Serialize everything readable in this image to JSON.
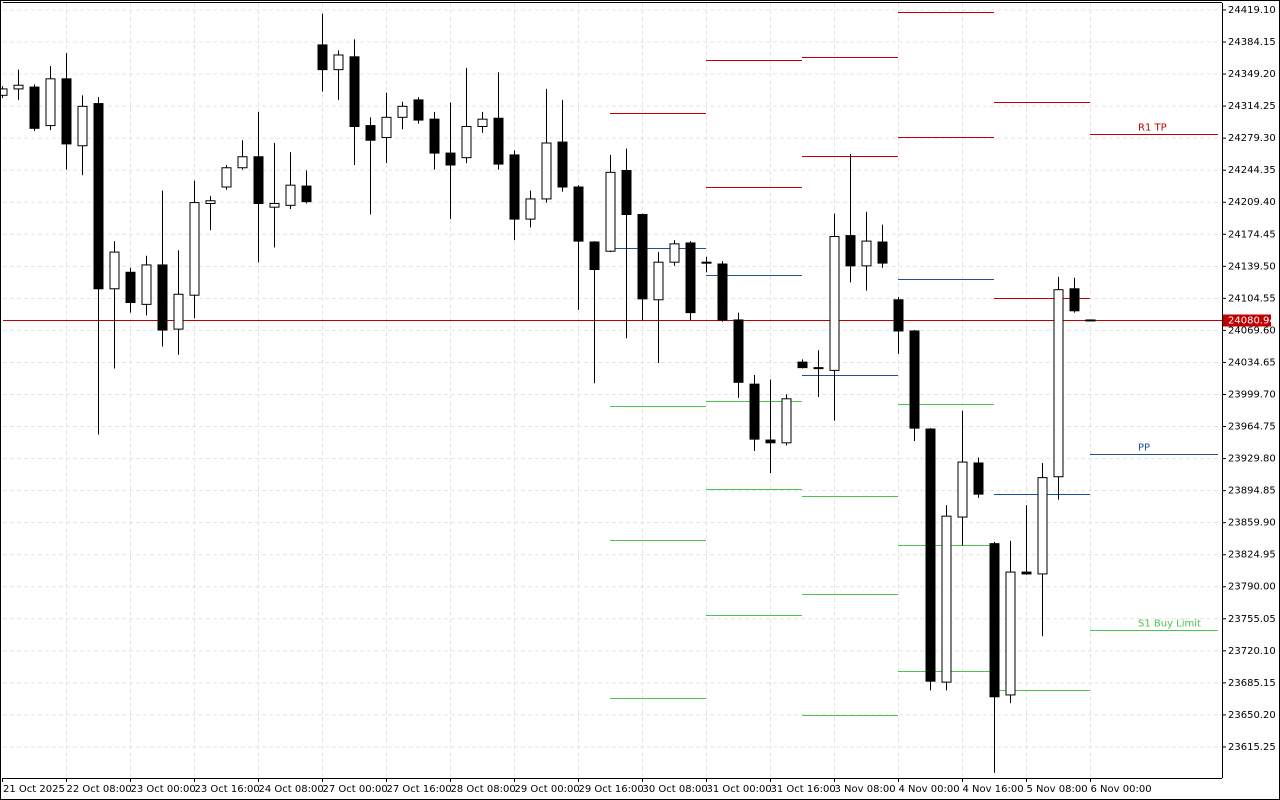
{
  "chart_data": {
    "type": "candlestick",
    "categories": [
      "21 Oct 2025",
      null,
      null,
      null,
      "22 Oct 08:00",
      null,
      null,
      null,
      "23 Oct 00:00",
      null,
      null,
      null,
      "23 Oct 16:00",
      null,
      null,
      null,
      "24 Oct 08:00",
      null,
      null,
      null,
      "27 Oct 00:00",
      null,
      null,
      null,
      "27 Oct 16:00",
      null,
      null,
      null,
      "28 Oct 08:00",
      null,
      null,
      null,
      "29 Oct 00:00",
      null,
      null,
      null,
      "29 Oct 16:00",
      null,
      null,
      null,
      "30 Oct 08:00",
      null,
      null,
      null,
      "31 Oct 00:00",
      null,
      null,
      null,
      "31 Oct 16:00",
      null,
      null,
      null,
      "3 Nov 08:00",
      null,
      null,
      null,
      "4 Nov 00:00",
      null,
      null,
      null,
      "4 Nov 16:00",
      null,
      null,
      null,
      "5 Nov 08:00",
      null,
      null,
      null,
      "6 Nov 00:00"
    ],
    "open": [
      24326,
      24333,
      24335,
      24293,
      24344,
      24271,
      24317,
      24115,
      24133,
      24098,
      24141,
      24071,
      24108,
      24208,
      24226,
      24247,
      24259,
      24204,
      24206,
      24227,
      24381,
      24354,
      24368,
      24293,
      24280,
      24302,
      24321,
      24300,
      24263,
      24258,
      24292,
      24301,
      24261,
      24191,
      24213,
      24275,
      24226,
      24166,
      24156,
      24244,
      24196,
      24103,
      24144,
      24165,
      24143,
      24142,
      24081,
      24011,
      23950,
      23947,
      24035,
      24028,
      24026,
      24173,
      24140,
      24166,
      24103,
      24069,
      23962,
      23686,
      23866,
      23925,
      23837,
      23672,
      23806,
      23804,
      23910,
      24115,
      24081
    ],
    "high": [
      24336,
      24354,
      24338,
      24358,
      24372,
      24326,
      24324,
      24167,
      24138,
      24151,
      24222,
      24157,
      24233,
      24216,
      24250,
      24277,
      24308,
      24274,
      24264,
      24244,
      24415,
      24375,
      24387,
      24302,
      24329,
      24319,
      24324,
      24308,
      24318,
      24356,
      24308,
      24351,
      24266,
      24222,
      24333,
      24321,
      24228,
      24167,
      24261,
      24268,
      24197,
      24155,
      24168,
      24167,
      24150,
      24145,
      24089,
      24021,
      24016,
      24000,
      24038,
      24048,
      24197,
      24262,
      24199,
      24185,
      24106,
      24070,
      23963,
      23879,
      23982,
      23931,
      23839,
      23840,
      23879,
      23925,
      24128,
      24127,
      24081
    ],
    "low": [
      24323,
      24321,
      24287,
      24288,
      24245,
      24239,
      23956,
      24028,
      24089,
      24086,
      24052,
      24043,
      24083,
      24179,
      24223,
      24245,
      24144,
      24160,
      24202,
      24208,
      24330,
      24321,
      24250,
      24196,
      24252,
      24289,
      24295,
      24245,
      24191,
      24252,
      24285,
      24245,
      24168,
      24182,
      24209,
      24221,
      24092,
      24012,
      24155,
      24061,
      24081,
      24034,
      24140,
      24081,
      24133,
      24079,
      23996,
      23938,
      23914,
      23944,
      24028,
      23997,
      23971,
      24122,
      24113,
      24138,
      24044,
      23949,
      23677,
      23677,
      23835,
      23887,
      23587,
      23663,
      23803,
      23736,
      23885,
      24089,
      24080
    ],
    "close": [
      24333,
      24337,
      24290,
      24344,
      24273,
      24314,
      24115,
      24155,
      24100,
      24141,
      24070,
      24109,
      24209,
      24211,
      24247,
      24259,
      24208,
      24208,
      24228,
      24210,
      24354,
      24370,
      24292,
      24277,
      24302,
      24314,
      24299,
      24263,
      24250,
      24292,
      24300,
      24251,
      24191,
      24213,
      24274,
      24226,
      24167,
      24136,
      24242,
      24196,
      24104,
      24144,
      24164,
      24089,
      24144,
      24081,
      24013,
      23951,
      23947,
      23995,
      24029,
      24029,
      24172,
      24140,
      24167,
      24143,
      24069,
      23963,
      23687,
      23867,
      23926,
      23891,
      23670,
      23806,
      23804,
      23909,
      24114,
      24091,
      24080
    ],
    "up_color": "#ffffff",
    "down_color": "#000000",
    "ylim": [
      23581.4,
      24426.7
    ],
    "yticks": [
      {
        "value": 24419.1,
        "label": "24419.10"
      },
      {
        "value": 24384.15,
        "label": "24384.15"
      },
      {
        "value": 24349.2,
        "label": "24349.20"
      },
      {
        "value": 24314.25,
        "label": "24314.25"
      },
      {
        "value": 24279.3,
        "label": "24279.30"
      },
      {
        "value": 24244.35,
        "label": "24244.35"
      },
      {
        "value": 24209.4,
        "label": "24209.40"
      },
      {
        "value": 24174.45,
        "label": "24174.45"
      },
      {
        "value": 24139.5,
        "label": "24139.50"
      },
      {
        "value": 24104.55,
        "label": "24104.55"
      },
      {
        "value": 24069.6,
        "label": "24069.60"
      },
      {
        "value": 24034.65,
        "label": "24034.65"
      },
      {
        "value": 23999.7,
        "label": "23999.70"
      },
      {
        "value": 23964.75,
        "label": "23964.75"
      },
      {
        "value": 23929.8,
        "label": "23929.80"
      },
      {
        "value": 23894.85,
        "label": "23894.85"
      },
      {
        "value": 23859.9,
        "label": "23859.90"
      },
      {
        "value": 23824.95,
        "label": "23824.95"
      },
      {
        "value": 23790.0,
        "label": "23790.00"
      },
      {
        "value": 23755.05,
        "label": "23755.05"
      },
      {
        "value": 23720.1,
        "label": "23720.10"
      },
      {
        "value": 23685.15,
        "label": "23685.15"
      },
      {
        "value": 23650.2,
        "label": "23650.20"
      },
      {
        "value": 23615.25,
        "label": "23615.25"
      }
    ],
    "grid": true,
    "current_price": 24080.94,
    "current_price_color": "#c00000",
    "pivot_segments": [
      {
        "levels": [
          {
            "value": 24307,
            "color": "#c00000"
          },
          {
            "value": 24160,
            "color": "#1c4f9c"
          },
          {
            "value": 23987,
            "color": "#4cc44c"
          },
          {
            "value": 23841,
            "color": "#4cc44c"
          },
          {
            "value": 23669,
            "color": "#4cc44c"
          }
        ]
      },
      {
        "levels": [
          {
            "value": 24364,
            "color": "#c00000"
          },
          {
            "value": 24226,
            "color": "#c00000"
          },
          {
            "value": 24130,
            "color": "#1c4f9c"
          },
          {
            "value": 23993,
            "color": "#4cc44c"
          },
          {
            "value": 23897,
            "color": "#4cc44c"
          },
          {
            "value": 23759,
            "color": "#4cc44c"
          }
        ]
      },
      {
        "levels": [
          {
            "value": 24368,
            "color": "#c00000"
          },
          {
            "value": 24260,
            "color": "#c00000"
          },
          {
            "value": 24021,
            "color": "#1c4f9c"
          },
          {
            "value": 23889,
            "color": "#4cc44c"
          },
          {
            "value": 23782,
            "color": "#4cc44c"
          },
          {
            "value": 23650,
            "color": "#4cc44c"
          }
        ]
      },
      {
        "levels": [
          {
            "value": 24417,
            "color": "#c00000"
          },
          {
            "value": 24281,
            "color": "#c00000"
          },
          {
            "value": 24126,
            "color": "#1c4f9c"
          },
          {
            "value": 23989,
            "color": "#4cc44c"
          },
          {
            "value": 23835,
            "color": "#4cc44c"
          },
          {
            "value": 23698,
            "color": "#4cc44c"
          }
        ]
      },
      {
        "levels": [
          {
            "value": 24319,
            "color": "#c00000"
          },
          {
            "value": 24105,
            "color": "#c00000"
          },
          {
            "value": 23891,
            "color": "#1c4f9c"
          },
          {
            "value": 23677,
            "color": "#4cc44c"
          }
        ]
      },
      {
        "levels": [
          {
            "value": 24284,
            "color": "#c00000",
            "label": "R1 TP"
          },
          {
            "value": 23935,
            "color": "#1c4f9c",
            "label": "PP"
          },
          {
            "value": 23743,
            "color": "#4cc44c",
            "label": "S1 Buy Limit"
          }
        ]
      }
    ]
  }
}
